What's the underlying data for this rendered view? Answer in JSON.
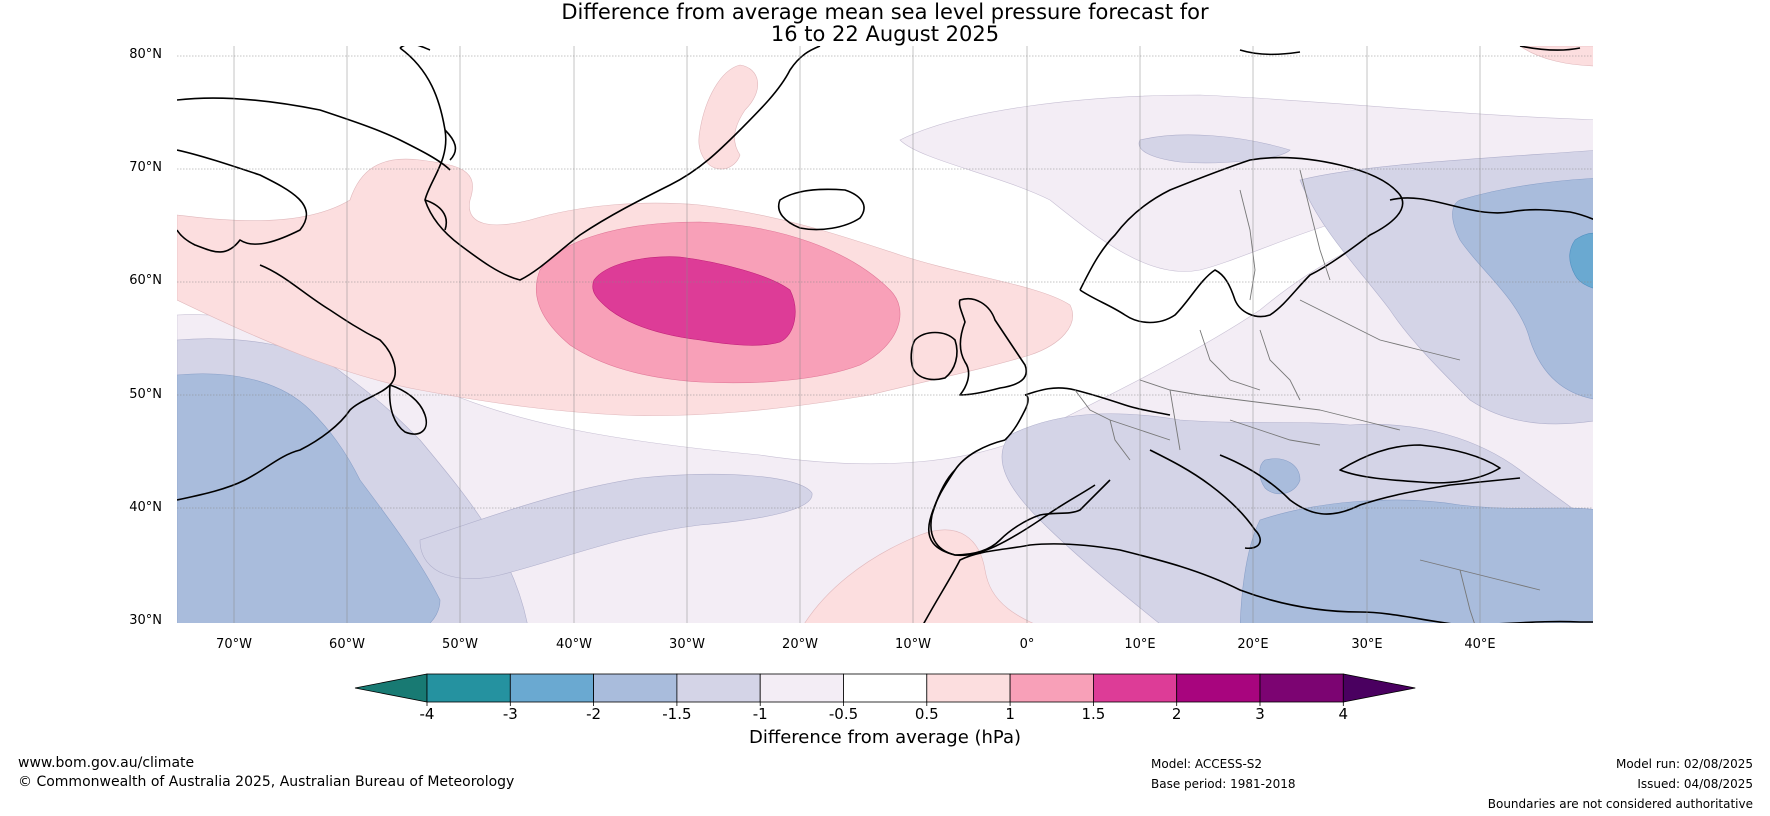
{
  "title": {
    "line1": "Difference from average mean sea level pressure forecast for",
    "line2": "16 to 22 August 2025"
  },
  "axes": {
    "lat_labels": [
      "80°N",
      "70°N",
      "60°N",
      "50°N",
      "40°N",
      "30°N"
    ],
    "lon_labels": [
      "70°W",
      "60°W",
      "50°W",
      "40°W",
      "30°W",
      "20°W",
      "10°W",
      "0°",
      "10°E",
      "20°E",
      "30°E",
      "40°E"
    ],
    "lat_range": [
      30,
      80
    ],
    "lon_range": [
      -75,
      50
    ],
    "grid": true
  },
  "colorbar": {
    "title": "Difference from average (hPa)",
    "ticks": [
      "-4",
      "-3",
      "-2",
      "-1.5",
      "-1",
      "-0.5",
      "0.5",
      "1",
      "1.5",
      "2",
      "3",
      "4"
    ],
    "colors": [
      "#187a73",
      "#2592a0",
      "#6aa9d1",
      "#a9bcdc",
      "#d4d4e7",
      "#f3edf5",
      "#ffffff",
      "#fcdedf",
      "#f8a0b8",
      "#dd3c97",
      "#a8057e",
      "#7c0472",
      "#4a0060"
    ],
    "extend": "both"
  },
  "footer": {
    "url": "www.bom.gov.au/climate",
    "copyright": "© Commonwealth of Australia 2025, Australian Bureau of Meteorology",
    "model": "Model: ACCESS-S2",
    "base_period": "Base period: 1981-2018",
    "model_run": "Model run: 02/08/2025",
    "issued": "Issued: 04/08/2025",
    "disclaimer": "Boundaries are not considered authoritative"
  }
}
